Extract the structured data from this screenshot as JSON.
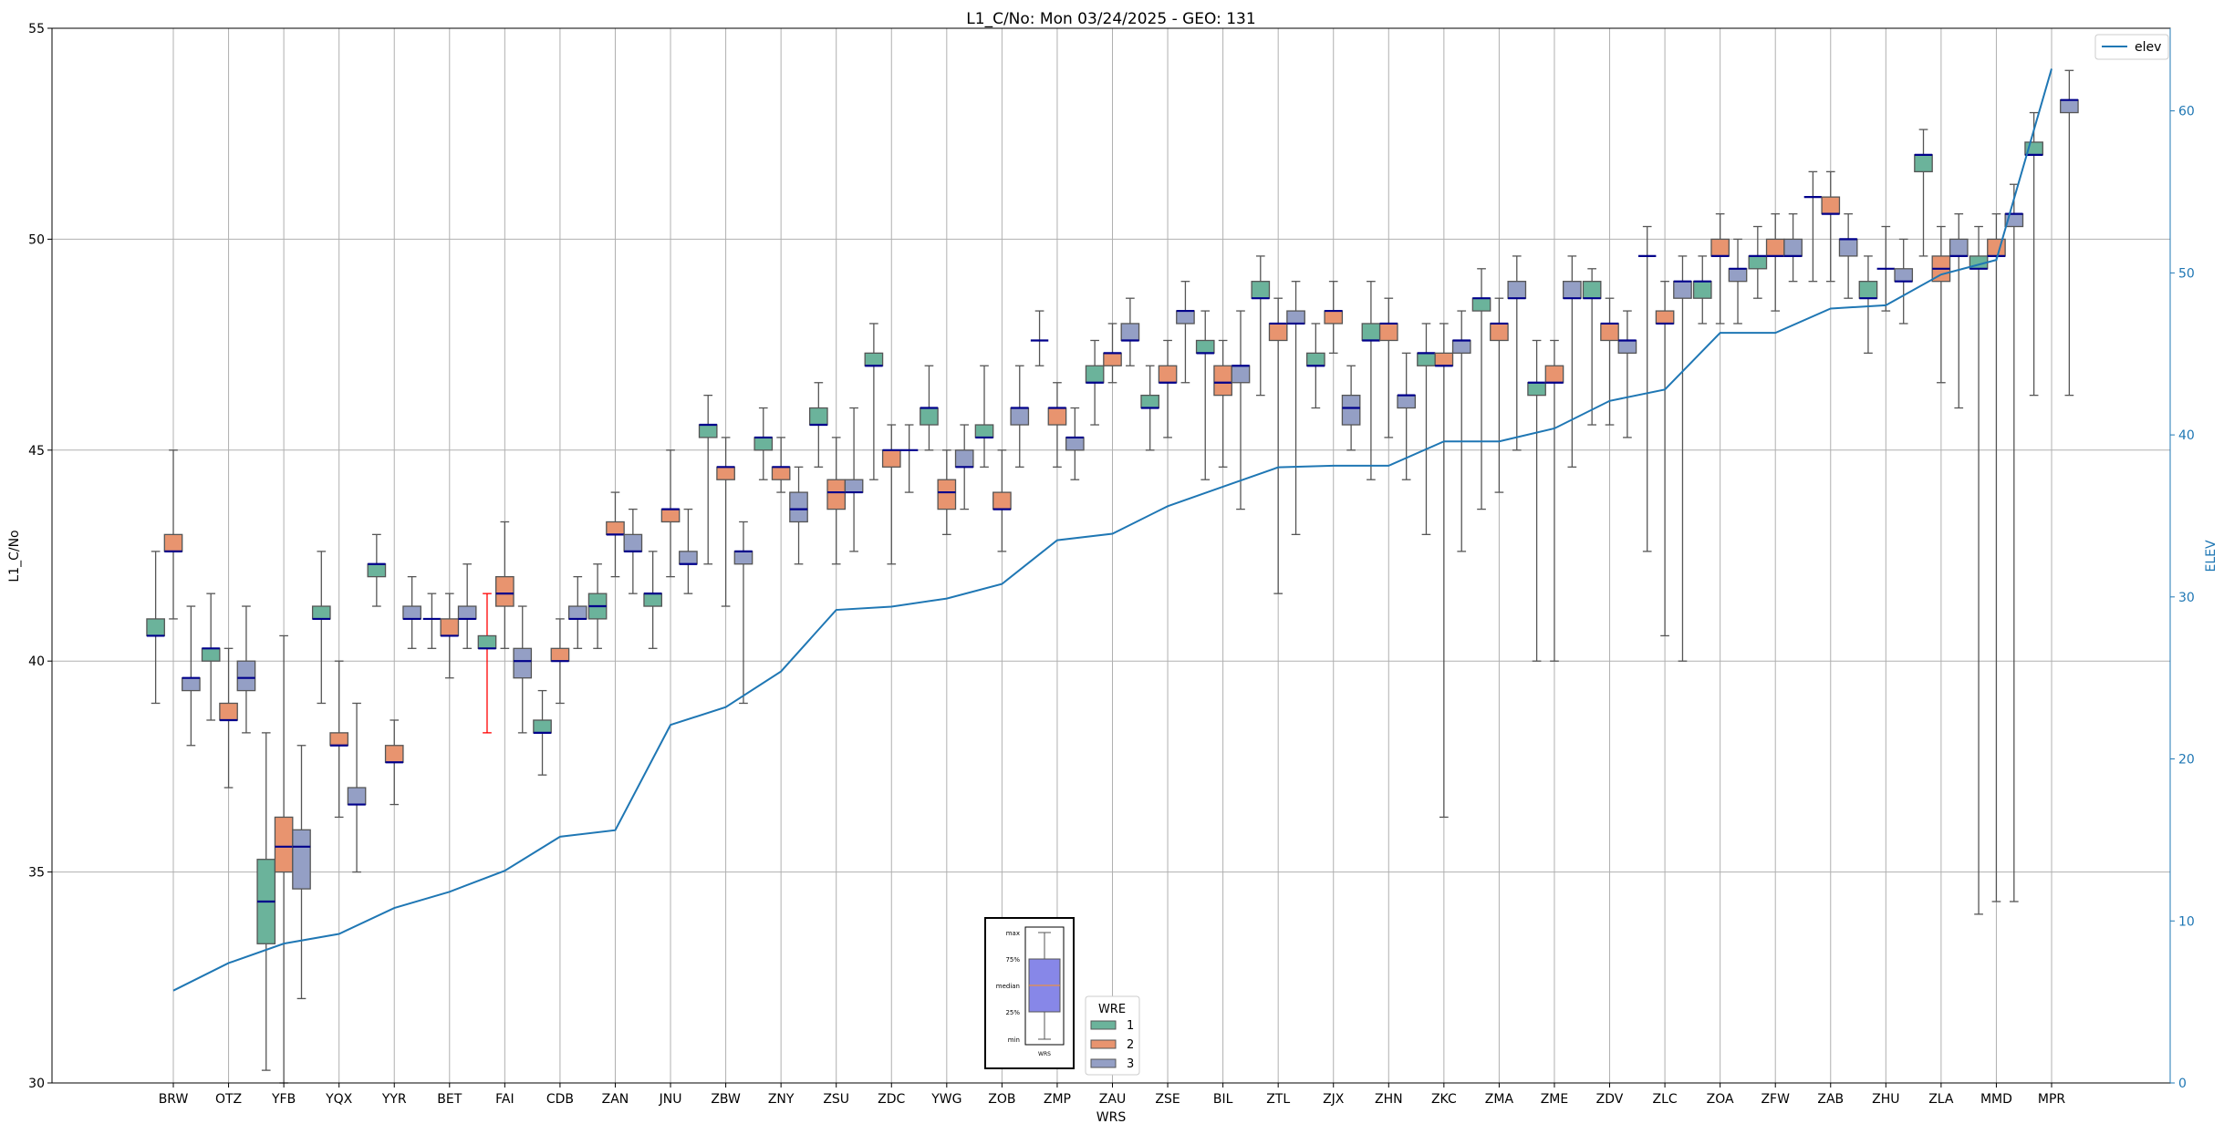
{
  "chart_data": {
    "type": "box",
    "title": "L1_C/No: Mon 03/24/2025 - GEO: 131",
    "xlabel": "WRS",
    "ylabel": "L1_C/No",
    "y2label": "ELEV",
    "ylim": [
      30,
      55
    ],
    "y2lim": [
      0,
      65.1
    ],
    "yticks": [
      30,
      35,
      40,
      45,
      50,
      55
    ],
    "y2ticks": [
      0,
      10,
      20,
      30,
      40,
      50,
      60
    ],
    "grid": true,
    "colors": {
      "1": "#6bb39b",
      "2": "#e8946f",
      "3": "#949fc5",
      "median": "#00008b",
      "elev": "#1f77b4",
      "whisker": "#555555",
      "red_whisker": "#ff0000"
    },
    "legend_elev": {
      "label": "elev",
      "placement": "top-right"
    },
    "legend_wre": {
      "title": "WRE",
      "entries": [
        "1",
        "2",
        "3"
      ],
      "placement": "bottom-center"
    },
    "inset_key": {
      "labels": [
        "max",
        "75%",
        "median",
        "25%",
        "min"
      ],
      "xlabel": "WRS"
    },
    "categories": [
      "BRW",
      "OTZ",
      "YFB",
      "YQX",
      "YYR",
      "BET",
      "FAI",
      "CDB",
      "ZAN",
      "JNU",
      "ZBW",
      "ZNY",
      "ZSU",
      "ZDC",
      "YWG",
      "ZOB",
      "ZMP",
      "ZAU",
      "ZSE",
      "BIL",
      "ZTL",
      "ZJX",
      "ZHN",
      "ZKC",
      "ZMA",
      "ZME",
      "ZDV",
      "ZLC",
      "ZOA",
      "ZFW",
      "ZAB",
      "ZHU",
      "ZLA",
      "MMD",
      "MPR"
    ],
    "elev": [
      5.7,
      7.4,
      8.6,
      9.2,
      10.8,
      11.8,
      13.1,
      15.2,
      15.6,
      22.1,
      23.2,
      25.4,
      29.2,
      29.4,
      29.9,
      30.8,
      33.5,
      33.9,
      35.6,
      36.8,
      38.0,
      38.1,
      38.1,
      39.6,
      39.6,
      40.4,
      42.1,
      42.8,
      46.3,
      46.3,
      47.8,
      48.0,
      49.9,
      50.8,
      62.6
    ],
    "boxes_format": "[min, q1, median, q3, max] per WRE 1,2,3",
    "boxes": [
      [
        [
          39.0,
          40.6,
          40.6,
          41.0,
          42.6
        ],
        [
          41.0,
          42.6,
          42.6,
          43.0,
          45.0
        ],
        [
          38.0,
          39.3,
          39.6,
          39.6,
          41.3
        ]
      ],
      [
        [
          38.6,
          40.0,
          40.3,
          40.3,
          41.6
        ],
        [
          37.0,
          38.6,
          38.6,
          39.0,
          40.3
        ],
        [
          38.3,
          39.3,
          39.6,
          40.0,
          41.3
        ]
      ],
      [
        [
          30.3,
          33.3,
          34.3,
          35.3,
          38.3
        ],
        [
          30.0,
          35.0,
          35.6,
          36.3,
          40.6
        ],
        [
          32.0,
          34.6,
          35.6,
          36.0,
          38.0
        ]
      ],
      [
        [
          39.0,
          41.0,
          41.0,
          41.3,
          42.6
        ],
        [
          36.3,
          38.0,
          38.0,
          38.3,
          40.0
        ],
        [
          35.0,
          36.6,
          36.6,
          37.0,
          39.0
        ]
      ],
      [
        [
          41.3,
          42.0,
          42.3,
          42.3,
          43.0
        ],
        [
          36.6,
          37.6,
          37.6,
          38.0,
          38.6
        ],
        [
          40.3,
          41.0,
          41.0,
          41.3,
          42.0
        ]
      ],
      [
        [
          40.3,
          41.0,
          41.0,
          41.0,
          41.6
        ],
        [
          39.6,
          40.6,
          40.6,
          41.0,
          41.6
        ],
        [
          40.3,
          41.0,
          41.0,
          41.3,
          42.3
        ]
      ],
      [
        [
          38.3,
          40.3,
          40.3,
          40.6,
          41.6
        ],
        [
          40.3,
          41.3,
          41.6,
          42.0,
          43.3
        ],
        [
          38.3,
          39.6,
          40.0,
          40.3,
          41.3
        ]
      ],
      [
        [
          37.3,
          38.3,
          38.3,
          38.6,
          39.3
        ],
        [
          39.0,
          40.0,
          40.0,
          40.3,
          41.0
        ],
        [
          40.3,
          41.0,
          41.0,
          41.3,
          42.0
        ]
      ],
      [
        [
          40.3,
          41.0,
          41.3,
          41.6,
          42.3
        ],
        [
          42.0,
          43.0,
          43.0,
          43.3,
          44.0
        ],
        [
          41.6,
          42.6,
          42.6,
          43.0,
          43.6
        ]
      ],
      [
        [
          40.3,
          41.3,
          41.6,
          41.6,
          42.6
        ],
        [
          42.0,
          43.3,
          43.6,
          43.6,
          45.0
        ],
        [
          41.6,
          42.3,
          42.3,
          42.6,
          43.6
        ]
      ],
      [
        [
          42.3,
          45.3,
          45.6,
          45.6,
          46.3
        ],
        [
          41.3,
          44.3,
          44.6,
          44.6,
          45.3
        ],
        [
          39.0,
          42.3,
          42.6,
          42.6,
          43.3
        ]
      ],
      [
        [
          44.3,
          45.0,
          45.3,
          45.3,
          46.0
        ],
        [
          44.0,
          44.3,
          44.6,
          44.6,
          45.3
        ],
        [
          42.3,
          43.3,
          43.6,
          44.0,
          44.6
        ]
      ],
      [
        [
          44.6,
          45.6,
          45.6,
          46.0,
          46.6
        ],
        [
          42.3,
          43.6,
          44.0,
          44.3,
          45.3
        ],
        [
          42.6,
          44.0,
          44.0,
          44.3,
          46.0
        ]
      ],
      [
        [
          44.3,
          47.0,
          47.0,
          47.3,
          48.0
        ],
        [
          42.3,
          44.6,
          45.0,
          45.0,
          45.6
        ],
        [
          44.0,
          45.0,
          45.0,
          45.0,
          45.6
        ]
      ],
      [
        [
          45.0,
          45.6,
          46.0,
          46.0,
          47.0
        ],
        [
          43.0,
          43.6,
          44.0,
          44.3,
          45.0
        ],
        [
          43.6,
          44.6,
          44.6,
          45.0,
          45.6
        ]
      ],
      [
        [
          44.6,
          45.3,
          45.3,
          45.6,
          47.0
        ],
        [
          42.6,
          43.6,
          43.6,
          44.0,
          45.0
        ],
        [
          44.6,
          45.6,
          46.0,
          46.0,
          47.0
        ]
      ],
      [
        [
          47.0,
          47.6,
          47.6,
          47.6,
          48.3
        ],
        [
          44.6,
          45.6,
          46.0,
          46.0,
          46.6
        ],
        [
          44.3,
          45.0,
          45.3,
          45.3,
          46.0
        ]
      ],
      [
        [
          45.6,
          46.6,
          46.6,
          47.0,
          47.6
        ],
        [
          46.6,
          47.0,
          47.3,
          47.3,
          48.0
        ],
        [
          47.0,
          47.6,
          47.6,
          48.0,
          48.6
        ]
      ],
      [
        [
          45.0,
          46.0,
          46.0,
          46.3,
          47.0
        ],
        [
          45.3,
          46.6,
          46.6,
          47.0,
          47.6
        ],
        [
          46.6,
          48.0,
          48.3,
          48.3,
          49.0
        ]
      ],
      [
        [
          44.3,
          47.3,
          47.3,
          47.6,
          48.3
        ],
        [
          44.6,
          46.3,
          46.6,
          47.0,
          47.6
        ],
        [
          43.6,
          46.6,
          47.0,
          47.0,
          48.3
        ]
      ],
      [
        [
          46.3,
          48.6,
          48.6,
          49.0,
          49.6
        ],
        [
          41.6,
          47.6,
          48.0,
          48.0,
          48.6
        ],
        [
          43.0,
          48.0,
          48.0,
          48.3,
          49.0
        ]
      ],
      [
        [
          46.0,
          47.0,
          47.0,
          47.3,
          48.0
        ],
        [
          47.3,
          48.0,
          48.3,
          48.3,
          49.0
        ],
        [
          45.0,
          45.6,
          46.0,
          46.3,
          47.0
        ]
      ],
      [
        [
          44.3,
          47.6,
          47.6,
          48.0,
          49.0
        ],
        [
          45.3,
          47.6,
          48.0,
          48.0,
          48.6
        ],
        [
          44.3,
          46.0,
          46.3,
          46.3,
          47.3
        ]
      ],
      [
        [
          43.0,
          47.0,
          47.3,
          47.3,
          48.0
        ],
        [
          36.3,
          47.0,
          47.0,
          47.3,
          48.0
        ],
        [
          42.6,
          47.3,
          47.6,
          47.6,
          48.3
        ]
      ],
      [
        [
          43.6,
          48.3,
          48.6,
          48.6,
          49.3
        ],
        [
          44.0,
          47.6,
          48.0,
          48.0,
          48.6
        ],
        [
          45.0,
          48.6,
          48.6,
          49.0,
          49.6
        ]
      ],
      [
        [
          40.0,
          46.3,
          46.6,
          46.6,
          47.6
        ],
        [
          40.0,
          46.6,
          46.6,
          47.0,
          47.6
        ],
        [
          44.6,
          48.6,
          48.6,
          49.0,
          49.6
        ]
      ],
      [
        [
          45.6,
          48.6,
          48.6,
          49.0,
          49.3
        ],
        [
          45.6,
          47.6,
          48.0,
          48.0,
          48.6
        ],
        [
          45.3,
          47.3,
          47.6,
          47.6,
          48.3
        ]
      ],
      [
        [
          42.6,
          49.6,
          49.6,
          49.6,
          50.3
        ],
        [
          40.6,
          48.0,
          48.0,
          48.3,
          49.0
        ],
        [
          40.0,
          48.6,
          49.0,
          49.0,
          49.6
        ]
      ],
      [
        [
          48.0,
          48.6,
          49.0,
          49.0,
          49.6
        ],
        [
          48.0,
          49.6,
          49.6,
          50.0,
          50.6
        ],
        [
          48.0,
          49.0,
          49.3,
          49.3,
          50.0
        ]
      ],
      [
        [
          48.6,
          49.3,
          49.6,
          49.6,
          50.3
        ],
        [
          48.3,
          49.6,
          49.6,
          50.0,
          50.6
        ],
        [
          49.0,
          49.6,
          49.6,
          50.0,
          50.6
        ]
      ],
      [
        [
          49.0,
          51.0,
          51.0,
          51.0,
          51.6
        ],
        [
          49.0,
          50.6,
          50.6,
          51.0,
          51.6
        ],
        [
          48.6,
          49.6,
          50.0,
          50.0,
          50.6
        ]
      ],
      [
        [
          47.3,
          48.6,
          48.6,
          49.0,
          49.6
        ],
        [
          48.3,
          49.3,
          49.3,
          49.3,
          50.3
        ],
        [
          48.0,
          49.0,
          49.0,
          49.3,
          50.0
        ]
      ],
      [
        [
          49.6,
          51.6,
          52.0,
          52.0,
          52.6
        ],
        [
          46.6,
          49.0,
          49.3,
          49.6,
          50.3
        ],
        [
          46.0,
          49.6,
          49.6,
          50.0,
          50.6
        ]
      ],
      [
        [
          34.0,
          49.3,
          49.3,
          49.6,
          50.3
        ],
        [
          34.3,
          49.6,
          49.6,
          50.0,
          50.6
        ],
        [
          34.3,
          50.3,
          50.6,
          50.6,
          51.3
        ]
      ],
      [
        [
          46.3,
          52.0,
          52.0,
          52.3,
          53.0
        ],
        null,
        [
          46.3,
          53.0,
          53.3,
          53.3,
          54.0
        ]
      ]
    ],
    "red_whisker": {
      "category": "FAI",
      "wre": "1"
    }
  }
}
